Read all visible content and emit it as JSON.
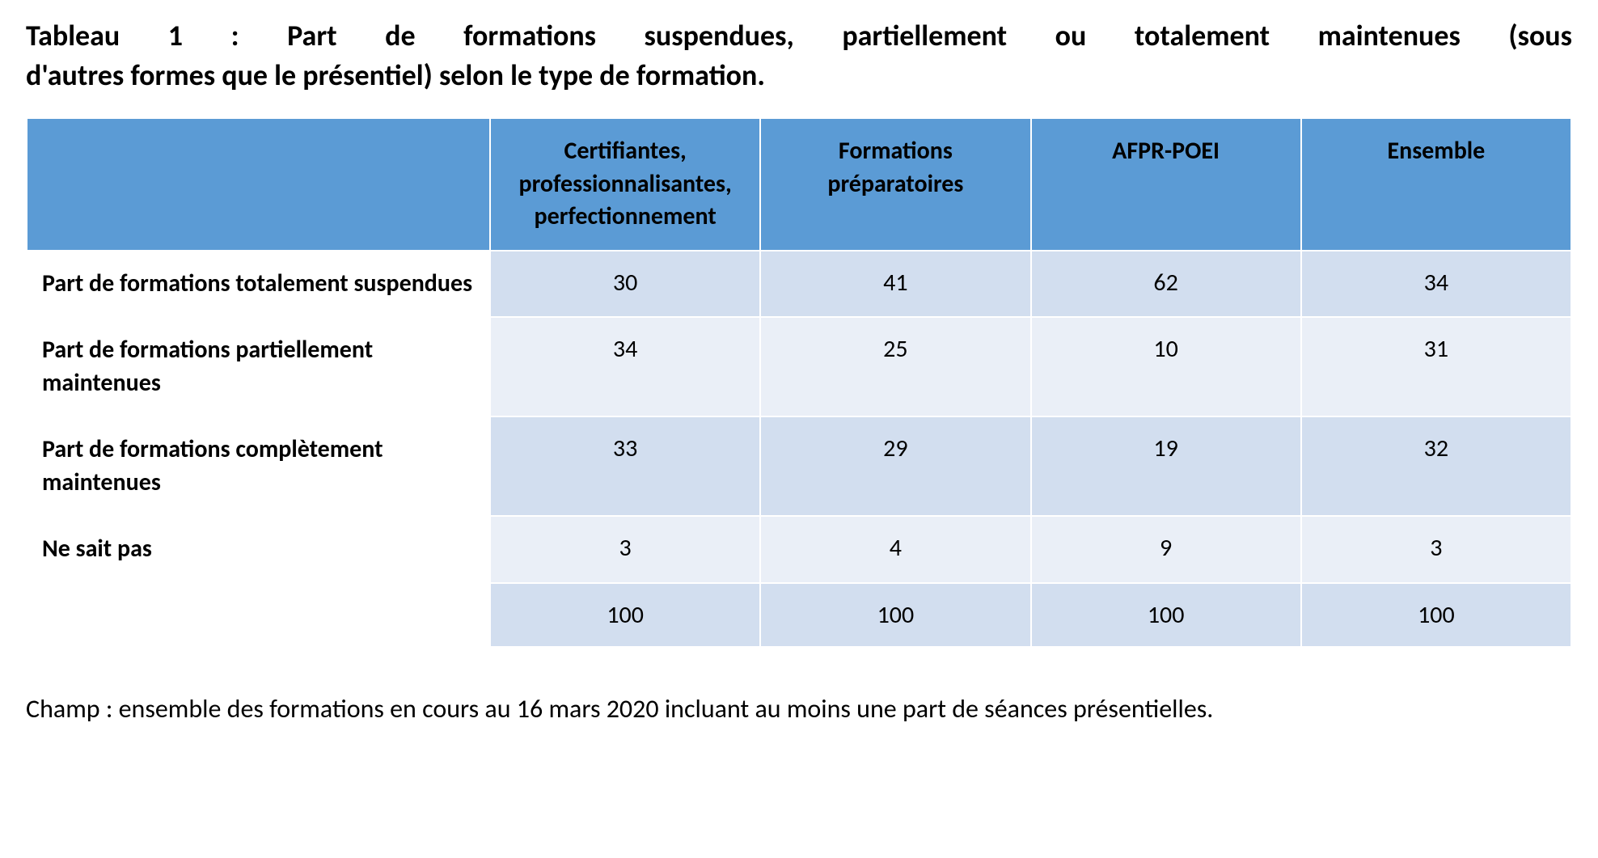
{
  "title_line1": "Tableau 1 : Part de formations suspendues, partiellement ou totalement maintenues (sous",
  "title_line2": "d'autres formes que le présentiel) selon le type de formation.",
  "table": {
    "type": "table",
    "header_bg": "#5b9bd5",
    "row_colors": [
      "#d2deef",
      "#eaeff7"
    ],
    "border_color": "#ffffff",
    "font_family": "Calibri",
    "header_fontsize": 30,
    "cell_fontsize": 30,
    "columns": [
      "",
      "Certifiantes, professionnalisantes, perfectionnement",
      "Formations préparatoires",
      "AFPR-POEI",
      "Ensemble"
    ],
    "rows": [
      {
        "label": "Part de formations totalement suspendues",
        "values": [
          "30",
          "41",
          "62",
          "34"
        ]
      },
      {
        "label": "Part de formations partiellement maintenues",
        "values": [
          "34",
          "25",
          "10",
          "31"
        ]
      },
      {
        "label": "Part de formations complètement maintenues",
        "values": [
          "33",
          "29",
          "19",
          "32"
        ]
      },
      {
        "label": "Ne sait pas",
        "values": [
          "3",
          "4",
          "9",
          "3"
        ]
      },
      {
        "label": "",
        "values": [
          "100",
          "100",
          "100",
          "100"
        ]
      }
    ],
    "col_widths_pct": [
      30,
      17.5,
      17.5,
      17.5,
      17.5
    ]
  },
  "footnote": "Champ : ensemble des formations en cours au 16 mars 2020 incluant au moins une part de séances présentielles."
}
